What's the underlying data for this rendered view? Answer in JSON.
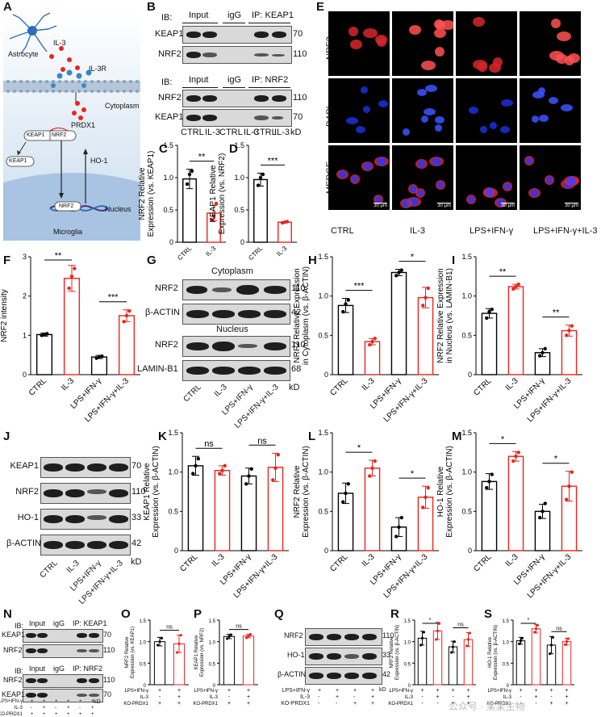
{
  "panels": [
    "A",
    "B",
    "C",
    "D",
    "E",
    "F",
    "G",
    "H",
    "I",
    "J",
    "K",
    "L",
    "M",
    "N",
    "O",
    "P",
    "Q",
    "R",
    "S"
  ],
  "panelA": {
    "astrocyte": "Astrocyte",
    "il3": "IL-3",
    "il3r": "IL-3R",
    "cytoplasm": "Cytoplasm",
    "prdx1": "PRDX1",
    "keap1": "KEAP1",
    "nrf2": "NRF2",
    "keap1_free": "KEAP1",
    "ho1": "HO-1",
    "nucleus": "Nucleus",
    "nrf2_nuc": "NRF2",
    "microglia": "Microglia"
  },
  "panelB": {
    "ib": "IB:",
    "input": "Input",
    "igg": "igG",
    "ip_keap1": "IP: KEAP1",
    "ip_nrf2": "IP: NRF2",
    "keap1": "KEAP1",
    "nrf2": "NRF2",
    "mw70": "70",
    "mw110": "110",
    "lanes": [
      "CTRL",
      "IL-3",
      "CTRL",
      "IL-3",
      "CTRL",
      "IL-3"
    ],
    "kd": "kD"
  },
  "panelE": {
    "rows": [
      "NRF2",
      "DAPI",
      "MERGE"
    ],
    "cols": [
      "CTRL",
      "IL-3",
      "LPS+IFN-γ",
      "LPS+IFN-γ+IL-3"
    ],
    "scale": "30 μm"
  },
  "panelG": {
    "cytoplasm": "Cytoplasm",
    "nucleus": "Nucleus",
    "nrf2": "NRF2",
    "bactin": "β-ACTIN",
    "laminb1": "LAMIN-B1",
    "mw110": "110",
    "mw42": "42",
    "mw68": "68",
    "kd": "kD"
  },
  "panelJ": {
    "rows": [
      "KEAP1",
      "NRF2",
      "HO-1",
      "β-ACTIN"
    ],
    "mw": [
      "70",
      "110",
      "33",
      "42"
    ],
    "kd": "kD"
  },
  "groups4": [
    "CTRL",
    "IL-3",
    "LPS+IFN-γ",
    "LPS+IFN-γ+IL-3"
  ],
  "groups2": [
    "CTRL",
    "IL-3"
  ],
  "panelN": {
    "ib": "IB:",
    "input": "Input",
    "igg": "igG",
    "ip_keap1": "IP: KEAP1",
    "ip_nrf2": "IP: NRF2",
    "keap1": "KEAP1",
    "nrf2": "NRF2",
    "mw70": "70",
    "mw110": "110",
    "kd": "kD",
    "cond_labels": [
      "LPS+IFN-γ",
      "IL-3",
      "KO-PRDX1"
    ],
    "cond_rows": [
      [
        "+",
        "+",
        "+",
        "+",
        "+",
        "+"
      ],
      [
        "-",
        "+",
        "-",
        "+",
        "-",
        "+"
      ],
      [
        "+",
        "+",
        "+",
        "+",
        "+",
        "+"
      ]
    ]
  },
  "panelQ": {
    "rows": [
      "NRF2",
      "HO-1",
      "β-ACTIN"
    ],
    "mw": [
      "110",
      "33",
      "42"
    ],
    "kd": "kD",
    "cond_labels": [
      "LPS+IFN-γ",
      "IL-3",
      "KO-PRDX1"
    ],
    "cond_rows": [
      [
        "+",
        "+",
        "+",
        "+"
      ],
      [
        "-",
        "+",
        "-",
        "+"
      ],
      [
        "-",
        "-",
        "+",
        "+"
      ]
    ]
  },
  "condOP": {
    "labels": [
      "LPS+IFN-γ",
      "IL-3",
      "KO-PRDX1"
    ],
    "rows": [
      [
        "+",
        "+"
      ],
      [
        "-",
        "+"
      ],
      [
        "+",
        "+"
      ]
    ]
  },
  "condRS": {
    "labels": [
      "LPS+IFN-γ",
      "IL-3",
      "KO-PRDX1"
    ],
    "rows": [
      [
        "+",
        "+",
        "+",
        "+"
      ],
      [
        "-",
        "+",
        "-",
        "+"
      ],
      [
        "-",
        "-",
        "+",
        "+"
      ]
    ]
  },
  "watermark": "公众号 · 某某生物",
  "colors": {
    "ctrl": "#000000",
    "il3": "#e8251f"
  },
  "chart_data": [
    {
      "panel": "C",
      "type": "bar",
      "categories": [
        "CTRL",
        "IL-3"
      ],
      "values": [
        0.98,
        0.45
      ],
      "errors": [
        0.15,
        0.12
      ],
      "points": [
        [
          0.9,
          1.05,
          1.1
        ],
        [
          0.35,
          0.4,
          0.6
        ]
      ],
      "ylabel": "NRF2 Relative\nExpression (vs. KEAP1)",
      "ylim": [
        0,
        1.5
      ],
      "yticks": [
        0,
        0.5,
        1.0,
        1.5
      ],
      "sig": [
        {
          "a": 0,
          "b": 1,
          "t": "**"
        }
      ]
    },
    {
      "panel": "D",
      "type": "bar",
      "categories": [
        "CTRL",
        "IL-3"
      ],
      "values": [
        0.97,
        0.31
      ],
      "errors": [
        0.1,
        0.01
      ],
      "points": [
        [
          0.88,
          1.0,
          1.05
        ],
        [
          0.3,
          0.31,
          0.32
        ]
      ],
      "ylabel": "KEAP1 Relative\nExpression (vs. NRF2)",
      "ylim": [
        0,
        1.5
      ],
      "yticks": [
        0,
        0.5,
        1.0,
        1.5
      ],
      "sig": [
        {
          "a": 0,
          "b": 1,
          "t": "***"
        }
      ]
    },
    {
      "panel": "F",
      "type": "bar",
      "categories": [
        "CTRL",
        "IL-3",
        "LPS+IFN-γ",
        "LPS+IFN-γ+IL-3"
      ],
      "values": [
        1.02,
        2.45,
        0.45,
        1.5
      ],
      "errors": [
        0.04,
        0.33,
        0.04,
        0.15
      ],
      "points": [
        [
          1.0,
          1.02,
          1.04
        ],
        [
          2.2,
          2.5,
          2.7
        ],
        [
          0.42,
          0.45,
          0.47
        ],
        [
          1.35,
          1.5,
          1.62
        ]
      ],
      "ylabel": "NRF2 intensity",
      "ylim": [
        0,
        3
      ],
      "yticks": [
        0,
        1,
        2,
        3
      ],
      "sig": [
        {
          "a": 0,
          "b": 1,
          "t": "**"
        },
        {
          "a": 2,
          "b": 3,
          "t": "***"
        }
      ]
    },
    {
      "panel": "H",
      "type": "bar",
      "categories": [
        "CTRL",
        "IL-3",
        "LPS+IFN-γ",
        "LPS+IFN-γ+IL-3"
      ],
      "values": [
        0.88,
        0.42,
        1.3,
        0.98
      ],
      "errors": [
        0.09,
        0.04,
        0.04,
        0.13
      ],
      "points": [
        [
          0.8,
          0.9,
          0.95
        ],
        [
          0.38,
          0.42,
          0.46
        ],
        [
          1.26,
          1.3,
          1.33
        ],
        [
          0.88,
          0.98,
          1.1
        ]
      ],
      "ylabel": "NRF2 Relative Expression\nin Cytoplasm (vs. β-ACTIN)",
      "ylim": [
        0,
        1.5
      ],
      "yticks": [
        0,
        0.5,
        1.0,
        1.5
      ],
      "sig": [
        {
          "a": 0,
          "b": 1,
          "t": "***"
        },
        {
          "a": 2,
          "b": 3,
          "t": "*"
        }
      ]
    },
    {
      "panel": "I",
      "type": "bar",
      "categories": [
        "CTRL",
        "IL-3",
        "LPS+IFN-γ",
        "LPS+IFN-γ+IL-3"
      ],
      "values": [
        0.78,
        1.12,
        0.28,
        0.56
      ],
      "errors": [
        0.06,
        0.03,
        0.05,
        0.07
      ],
      "points": [
        [
          0.72,
          0.8,
          0.83
        ],
        [
          1.09,
          1.12,
          1.15
        ],
        [
          0.24,
          0.28,
          0.33
        ],
        [
          0.5,
          0.56,
          0.62
        ]
      ],
      "ylabel": "NRF2 Relative Expression\nin Nucleus (vs. LAMIN-B1)",
      "ylim": [
        0,
        1.5
      ],
      "yticks": [
        0,
        0.5,
        1.0,
        1.5
      ],
      "sig": [
        {
          "a": 0,
          "b": 1,
          "t": "**"
        },
        {
          "a": 2,
          "b": 3,
          "t": "**"
        }
      ]
    },
    {
      "panel": "K",
      "type": "bar",
      "categories": [
        "CTRL",
        "IL-3",
        "LPS+IFN-γ",
        "LPS+IFN-γ+IL-3"
      ],
      "values": [
        1.08,
        1.02,
        0.95,
        1.06
      ],
      "errors": [
        0.12,
        0.06,
        0.1,
        0.18
      ],
      "points": [
        [
          0.98,
          1.08,
          1.17
        ],
        [
          0.98,
          1.02,
          1.08
        ],
        [
          0.85,
          0.95,
          1.04
        ],
        [
          0.9,
          1.05,
          1.22
        ]
      ],
      "ylabel": "KEAP1 Relative\nExpression (vs. β-ACTIN)",
      "ylim": [
        0,
        1.5
      ],
      "yticks": [
        0,
        0.5,
        1.0,
        1.5
      ],
      "sig": [
        {
          "a": 0,
          "b": 1,
          "t": "ns"
        },
        {
          "a": 2,
          "b": 3,
          "t": "ns"
        }
      ]
    },
    {
      "panel": "L",
      "type": "bar",
      "categories": [
        "CTRL",
        "IL-3",
        "LPS+IFN-γ",
        "LPS+IFN-γ+IL-3"
      ],
      "values": [
        0.73,
        1.05,
        0.3,
        0.68
      ],
      "errors": [
        0.13,
        0.1,
        0.12,
        0.14
      ],
      "points": [
        [
          0.62,
          0.73,
          0.85
        ],
        [
          0.95,
          1.05,
          1.14
        ],
        [
          0.18,
          0.3,
          0.42
        ],
        [
          0.55,
          0.68,
          0.8
        ]
      ],
      "ylabel": "NRF2 Relative\nExpression (vs. β-ACTIN)",
      "ylim": [
        0,
        1.5
      ],
      "yticks": [
        0,
        0.5,
        1.0,
        1.5
      ],
      "sig": [
        {
          "a": 0,
          "b": 1,
          "t": "*"
        },
        {
          "a": 2,
          "b": 3,
          "t": "*"
        }
      ]
    },
    {
      "panel": "M",
      "type": "bar",
      "categories": [
        "CTRL",
        "IL-3",
        "LPS+IFN-γ",
        "LPS+IFN-γ+IL-3"
      ],
      "values": [
        0.88,
        1.2,
        0.5,
        0.82
      ],
      "errors": [
        0.1,
        0.06,
        0.09,
        0.19
      ],
      "points": [
        [
          0.8,
          0.88,
          0.97
        ],
        [
          1.14,
          1.2,
          1.25
        ],
        [
          0.42,
          0.5,
          0.6
        ],
        [
          0.65,
          0.82,
          1.0
        ]
      ],
      "ylabel": "HO-1 Relative\nExpression (vs. β-ACTIN)",
      "ylim": [
        0,
        1.5
      ],
      "yticks": [
        0,
        0.5,
        1.0,
        1.5
      ],
      "sig": [
        {
          "a": 0,
          "b": 1,
          "t": "*"
        },
        {
          "a": 2,
          "b": 3,
          "t": "*"
        }
      ]
    },
    {
      "panel": "O",
      "type": "bar",
      "categories": [
        "-",
        "+"
      ],
      "values": [
        1.0,
        0.95
      ],
      "errors": [
        0.1,
        0.2
      ],
      "points": [
        [
          0.92,
          1.0,
          1.08
        ],
        [
          0.75,
          0.95,
          1.15
        ]
      ],
      "ylabel": "NRF2 Relative\nExpression (vs. KEAP1)",
      "ylim": [
        0,
        1.5
      ],
      "yticks": [
        0,
        0.5,
        1.0,
        1.5
      ],
      "sig": [
        {
          "a": 0,
          "b": 1,
          "t": "ns"
        }
      ]
    },
    {
      "panel": "P",
      "type": "bar",
      "categories": [
        "-",
        "+"
      ],
      "values": [
        1.12,
        1.13
      ],
      "errors": [
        0.05,
        0.04
      ],
      "points": [
        [
          1.07,
          1.12,
          1.16
        ],
        [
          1.09,
          1.13,
          1.17
        ]
      ],
      "ylabel": "KEAP1 Relative\nExpression (vs. NRF2)",
      "ylim": [
        0,
        1.5
      ],
      "yticks": [
        0,
        0.5,
        1.0,
        1.5
      ],
      "sig": [
        {
          "a": 0,
          "b": 1,
          "t": "ns"
        }
      ]
    },
    {
      "panel": "R",
      "type": "bar",
      "categories": [
        "1",
        "2",
        "3",
        "4"
      ],
      "values": [
        1.08,
        1.25,
        0.88,
        1.05
      ],
      "errors": [
        0.16,
        0.2,
        0.13,
        0.16
      ],
      "points": [
        [
          0.92,
          1.08,
          1.22
        ],
        [
          1.05,
          1.25,
          1.42
        ],
        [
          0.75,
          0.88,
          1.0
        ],
        [
          0.9,
          1.05,
          1.2
        ]
      ],
      "ylabel": "NRF2 Relative\nExpression (vs. β-ACTIN)",
      "ylim": [
        0,
        1.5
      ],
      "yticks": [
        0,
        0.5,
        1.0,
        1.5
      ],
      "sig": [
        {
          "a": 0,
          "b": 1,
          "t": "*"
        },
        {
          "a": 2,
          "b": 3,
          "t": "ns"
        }
      ]
    },
    {
      "panel": "S",
      "type": "bar",
      "categories": [
        "1",
        "2",
        "3",
        "4"
      ],
      "values": [
        1.02,
        1.3,
        0.92,
        1.0
      ],
      "errors": [
        0.08,
        0.1,
        0.2,
        0.08
      ],
      "points": [
        [
          0.95,
          1.02,
          1.08
        ],
        [
          1.22,
          1.3,
          1.38
        ],
        [
          0.72,
          0.92,
          1.1
        ],
        [
          0.93,
          1.0,
          1.07
        ]
      ],
      "ylabel": "HO-1 Relative\nExpression (vs. β-ACTIN)",
      "ylim": [
        0,
        1.5
      ],
      "yticks": [
        0,
        0.5,
        1.0,
        1.5
      ],
      "sig": [
        {
          "a": 0,
          "b": 1,
          "t": "*"
        },
        {
          "a": 2,
          "b": 3,
          "t": "ns"
        }
      ]
    }
  ]
}
